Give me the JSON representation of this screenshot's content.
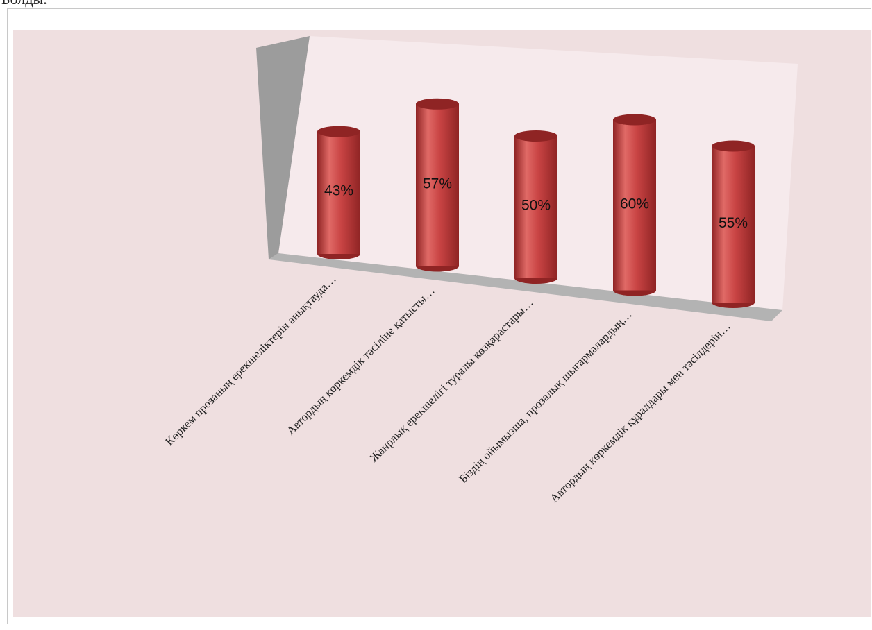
{
  "page": {
    "cut_text": "Болды."
  },
  "chart_data": {
    "type": "bar",
    "style": "3d-cylinder",
    "categories": [
      "Көркем прозаның ерекшеліктерін анықтауда…",
      "Автордың көркемдік тәсіліне қатысты…",
      "Жанрлық ерекшелігі туралы көзқарастары…",
      "Біздің ойымызша, прозалық шығармалардың…",
      "Автордың көркемдік құралдары мен тәсілдерін…"
    ],
    "values": [
      43,
      57,
      50,
      60,
      55
    ],
    "value_labels": [
      "43%",
      "57%",
      "50%",
      "60%",
      "55%"
    ],
    "ylim": [
      0,
      60
    ],
    "grid": false,
    "legend": "none",
    "colors": {
      "bar": "#c94444",
      "bar_dark": "#8f2424",
      "bar_light": "#e06a66",
      "plot_bg": "#efdfe0",
      "back_wall": "#f6eaec",
      "side_wall": "#9c9c9c",
      "floor": "#b3b3b3"
    }
  }
}
